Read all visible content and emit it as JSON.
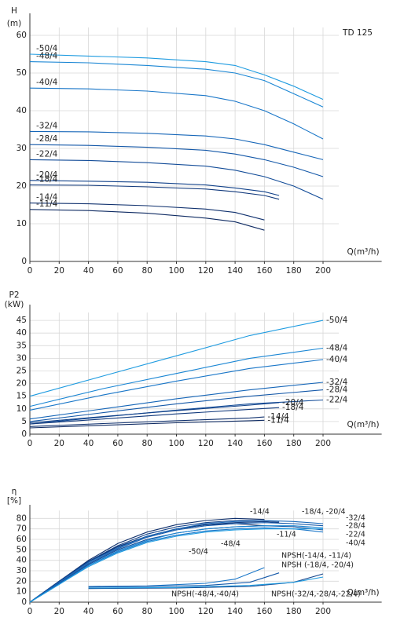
{
  "chart_data": [
    {
      "type": "line",
      "y_label": [
        "H",
        "(m)"
      ],
      "x_label": "Q(m³/h)",
      "annotation": "TD 125",
      "xlim": [
        0,
        240
      ],
      "ylim": [
        0,
        65
      ],
      "xticks": [
        0,
        20,
        40,
        60,
        80,
        100,
        120,
        140,
        160,
        180,
        200
      ],
      "yticks": [
        0,
        10,
        20,
        30,
        40,
        50,
        60
      ],
      "grid": true,
      "series": [
        {
          "name": "-50/4",
          "color": "#1e9be0",
          "x": [
            0,
            40,
            80,
            120,
            140,
            160,
            180,
            200
          ],
          "values": [
            55,
            54.5,
            54,
            53,
            52,
            49.5,
            46.5,
            43
          ]
        },
        {
          "name": "-48/4",
          "color": "#1a86d4",
          "x": [
            0,
            40,
            80,
            120,
            140,
            160,
            180,
            200
          ],
          "values": [
            53,
            52.7,
            52,
            51,
            50,
            48,
            44.5,
            41
          ]
        },
        {
          "name": "-40/4",
          "color": "#1976c8",
          "x": [
            0,
            40,
            80,
            120,
            140,
            160,
            180,
            200
          ],
          "values": [
            46,
            45.8,
            45.2,
            44,
            42.5,
            40,
            36.5,
            32.5
          ]
        },
        {
          "name": "-32/4",
          "color": "#1666b8",
          "x": [
            0,
            40,
            80,
            120,
            140,
            160,
            180,
            200
          ],
          "values": [
            34.5,
            34.4,
            34,
            33.3,
            32.5,
            31,
            29,
            27
          ]
        },
        {
          "name": "-28/4",
          "color": "#1458a8",
          "x": [
            0,
            40,
            80,
            120,
            140,
            160,
            180,
            200
          ],
          "values": [
            31,
            30.8,
            30.3,
            29.5,
            28.5,
            27,
            25,
            22.5
          ]
        },
        {
          "name": "-22/4",
          "color": "#134c98",
          "x": [
            0,
            40,
            80,
            120,
            140,
            160,
            180,
            200
          ],
          "values": [
            27,
            26.8,
            26.2,
            25.3,
            24.2,
            22.5,
            20,
            16.5
          ]
        },
        {
          "name": "-20/4",
          "color": "#12428a",
          "x": [
            0,
            40,
            80,
            120,
            140,
            160,
            170
          ],
          "values": [
            21.5,
            21.3,
            21,
            20.3,
            19.5,
            18.5,
            17.5
          ]
        },
        {
          "name": "-18/4",
          "color": "#11397c",
          "x": [
            0,
            40,
            80,
            120,
            140,
            160,
            170
          ],
          "values": [
            20.3,
            20.2,
            19.8,
            19.2,
            18.5,
            17.5,
            16.5
          ]
        },
        {
          "name": "-14/4",
          "color": "#10316e",
          "x": [
            0,
            40,
            80,
            120,
            140,
            160
          ],
          "values": [
            15.5,
            15.3,
            14.8,
            13.9,
            13,
            11
          ]
        },
        {
          "name": "-11/4",
          "color": "#0e2a62",
          "x": [
            0,
            40,
            80,
            120,
            140,
            160
          ],
          "values": [
            13.8,
            13.5,
            12.8,
            11.5,
            10.5,
            8.3
          ]
        }
      ]
    },
    {
      "type": "line",
      "y_label": [
        "P2",
        "(kW)"
      ],
      "x_label": "Q(m³/h)",
      "xlim": [
        0,
        240
      ],
      "ylim": [
        0,
        50
      ],
      "xticks": [
        0,
        20,
        40,
        60,
        80,
        100,
        120,
        140,
        160,
        180,
        200
      ],
      "yticks": [
        0,
        5,
        10,
        15,
        20,
        25,
        30,
        35,
        40,
        45
      ],
      "grid": true,
      "series": [
        {
          "name": "-50/4",
          "color": "#1e9be0",
          "x": [
            0,
            50,
            100,
            150,
            200
          ],
          "values": [
            15,
            23,
            31,
            39,
            45
          ]
        },
        {
          "name": "-48/4",
          "color": "#1a86d4",
          "x": [
            0,
            50,
            100,
            150,
            200
          ],
          "values": [
            11,
            18,
            24,
            30,
            34
          ]
        },
        {
          "name": "-40/4",
          "color": "#1976c8",
          "x": [
            0,
            50,
            100,
            150,
            200
          ],
          "values": [
            9.5,
            15.5,
            21,
            26,
            29.5
          ]
        },
        {
          "name": "-32/4",
          "color": "#1666b8",
          "x": [
            0,
            50,
            100,
            150,
            200
          ],
          "values": [
            6,
            10,
            14,
            17.5,
            20.5
          ]
        },
        {
          "name": "-28/4",
          "color": "#1458a8",
          "x": [
            0,
            50,
            100,
            150,
            200
          ],
          "values": [
            5,
            8.5,
            12,
            15,
            17.5
          ]
        },
        {
          "name": "-22/4",
          "color": "#134c98",
          "x": [
            0,
            50,
            100,
            150,
            200
          ],
          "values": [
            4,
            6.8,
            9.5,
            12,
            13.5
          ]
        },
        {
          "name": "-20/4",
          "color": "#12428a",
          "x": [
            0,
            50,
            100,
            150,
            170
          ],
          "values": [
            4.5,
            7,
            9.3,
            11.5,
            12.5
          ]
        },
        {
          "name": "-18/4",
          "color": "#11397c",
          "x": [
            0,
            50,
            100,
            150,
            170
          ],
          "values": [
            4,
            6,
            8,
            9.8,
            10.5
          ]
        },
        {
          "name": "-14/4",
          "color": "#10316e",
          "x": [
            0,
            50,
            100,
            150,
            160
          ],
          "values": [
            3,
            4.2,
            5.3,
            6.4,
            6.8
          ]
        },
        {
          "name": "-11/4",
          "color": "#0e2a62",
          "x": [
            0,
            50,
            100,
            150,
            160
          ],
          "values": [
            2.5,
            3.5,
            4.5,
            5.3,
            5.5
          ]
        }
      ]
    },
    {
      "type": "line",
      "y_label": [
        "η",
        "[%]"
      ],
      "x_label": "Q(m³/h)",
      "xlim": [
        0,
        240
      ],
      "ylim": [
        0,
        90
      ],
      "xticks": [
        0,
        20,
        40,
        60,
        80,
        100,
        120,
        140,
        160,
        180,
        200
      ],
      "yticks": [
        0,
        10,
        20,
        30,
        40,
        50,
        60,
        70,
        80
      ],
      "grid": true,
      "annotations": [
        "-14/4",
        "-18/4, -20/4",
        "-32/4",
        "-28/4",
        "-22/4",
        "-40/4",
        "-11/4",
        "-48/4",
        "-50/4",
        "NPSH(-14/4, -11/4)",
        "NPSH (-18/4, -20/4)",
        "NPSH(-48/4,-40/4)",
        "NPSH(-32/4,-28/4,-22/4)"
      ],
      "series": [
        {
          "color": "#0e2a62",
          "x": [
            0,
            20,
            40,
            60,
            80,
            100,
            120,
            140,
            160
          ],
          "values": [
            0,
            20,
            39,
            53,
            63,
            70,
            74,
            75,
            73
          ]
        },
        {
          "color": "#10316e",
          "x": [
            0,
            20,
            40,
            60,
            80,
            100,
            120,
            140,
            160
          ],
          "values": [
            0,
            20,
            40,
            56,
            67,
            74,
            78,
            80,
            79
          ]
        },
        {
          "color": "#11397c",
          "x": [
            0,
            20,
            40,
            60,
            80,
            100,
            120,
            140,
            160,
            170
          ],
          "values": [
            0,
            19,
            38,
            53,
            63,
            70,
            74,
            76,
            77,
            76
          ]
        },
        {
          "color": "#12428a",
          "x": [
            0,
            20,
            40,
            60,
            80,
            100,
            120,
            140,
            160,
            170
          ],
          "values": [
            0,
            20,
            39,
            54,
            65,
            72,
            76,
            78,
            78,
            77
          ]
        },
        {
          "color": "#134c98",
          "x": [
            0,
            20,
            40,
            60,
            80,
            100,
            120,
            140,
            160,
            180,
            200
          ],
          "values": [
            0,
            18,
            36,
            50,
            60,
            66,
            70,
            72,
            73,
            72,
            69
          ]
        },
        {
          "color": "#1458a8",
          "x": [
            0,
            20,
            40,
            60,
            80,
            100,
            120,
            140,
            160,
            180,
            200
          ],
          "values": [
            0,
            18,
            37,
            51,
            62,
            69,
            73,
            75,
            76,
            75,
            73
          ]
        },
        {
          "color": "#1666b8",
          "x": [
            0,
            20,
            40,
            60,
            80,
            100,
            120,
            140,
            160,
            180,
            200
          ],
          "values": [
            0,
            19,
            38,
            52,
            63,
            70,
            75,
            77,
            78,
            77,
            75
          ]
        },
        {
          "color": "#1976c8",
          "x": [
            0,
            20,
            40,
            60,
            80,
            100,
            120,
            140,
            160,
            180,
            200
          ],
          "values": [
            0,
            17,
            35,
            48,
            58,
            64,
            68,
            70,
            71,
            70,
            67
          ]
        },
        {
          "color": "#1a86d4",
          "x": [
            0,
            20,
            40,
            60,
            80,
            100,
            120,
            140,
            160,
            180,
            200
          ],
          "values": [
            0,
            17,
            35,
            49,
            59,
            66,
            70,
            72,
            73,
            73,
            71
          ]
        },
        {
          "color": "#1e9be0",
          "x": [
            0,
            20,
            40,
            60,
            80,
            100,
            120,
            140,
            160,
            180,
            200
          ],
          "values": [
            0,
            17,
            34,
            47,
            57,
            63,
            67,
            69,
            70,
            70,
            70
          ]
        },
        {
          "color": "#1976c8",
          "x": [
            40,
            80,
            120,
            140,
            160
          ],
          "values": [
            15,
            15.5,
            18,
            22,
            33
          ]
        },
        {
          "color": "#1458a8",
          "x": [
            40,
            80,
            120,
            150,
            170
          ],
          "values": [
            14.5,
            15,
            16,
            19,
            28
          ]
        },
        {
          "color": "#12428a",
          "x": [
            40,
            100,
            150,
            180,
            200
          ],
          "values": [
            13,
            13.5,
            15,
            19,
            27
          ]
        },
        {
          "color": "#1e9be0",
          "x": [
            40,
            100,
            150,
            180,
            200
          ],
          "values": [
            13.5,
            14,
            16,
            19,
            24
          ]
        }
      ]
    }
  ]
}
